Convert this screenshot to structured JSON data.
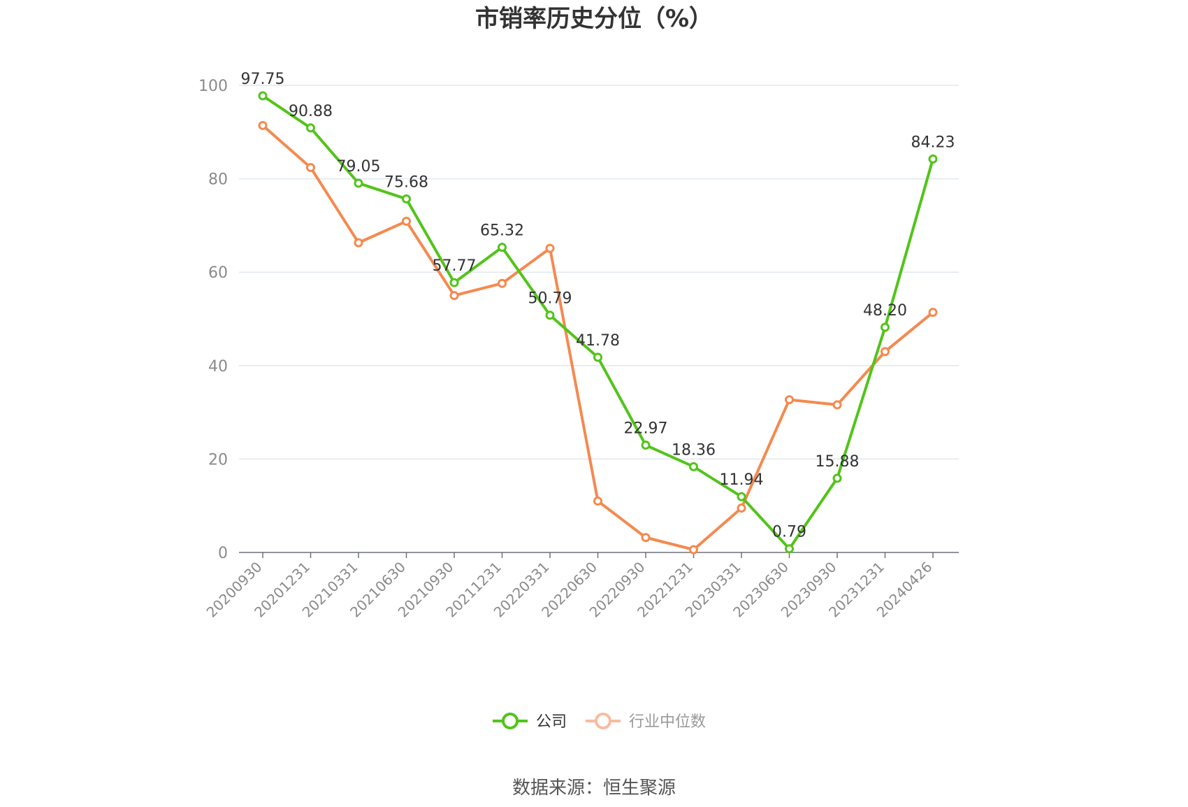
{
  "chart_data": {
    "type": "line",
    "title": "市销率历史分位（%）",
    "categories": [
      "20200930",
      "20201231",
      "20210331",
      "20210630",
      "20210930",
      "20211231",
      "20220331",
      "20220630",
      "20220930",
      "20221231",
      "20230331",
      "20230630",
      "20230930",
      "20231231",
      "20240426"
    ],
    "ylim": [
      0,
      100
    ],
    "yticks": [
      0,
      20,
      40,
      60,
      80,
      100
    ],
    "grid": true,
    "legend_position": "bottom",
    "series": [
      {
        "name": "公司",
        "color": "#52c41a",
        "values": [
          97.75,
          90.88,
          79.05,
          75.68,
          57.77,
          65.32,
          50.79,
          41.78,
          22.97,
          18.36,
          11.94,
          0.79,
          15.88,
          48.2,
          84.23
        ],
        "labels": [
          "97.75",
          "90.88",
          "79.05",
          "75.68",
          "57.77",
          "65.32",
          "50.79",
          "41.78",
          "22.97",
          "18.36",
          "11.94",
          "0.79",
          "15.88",
          "48.20",
          "84.23"
        ]
      },
      {
        "name": "行业中位数",
        "color": "#f5894f",
        "values": [
          91.4,
          82.4,
          66.3,
          70.9,
          55.0,
          57.6,
          65.1,
          11.0,
          3.2,
          0.6,
          9.5,
          32.7,
          31.6,
          43.0,
          51.4
        ]
      }
    ]
  },
  "legend": {
    "items": [
      {
        "label": "公司",
        "color": "#52c41a"
      },
      {
        "label": "行业中位数",
        "color": "#f5894f",
        "muted_color": "#f9bba0"
      }
    ]
  },
  "source": "数据来源：恒生聚源"
}
